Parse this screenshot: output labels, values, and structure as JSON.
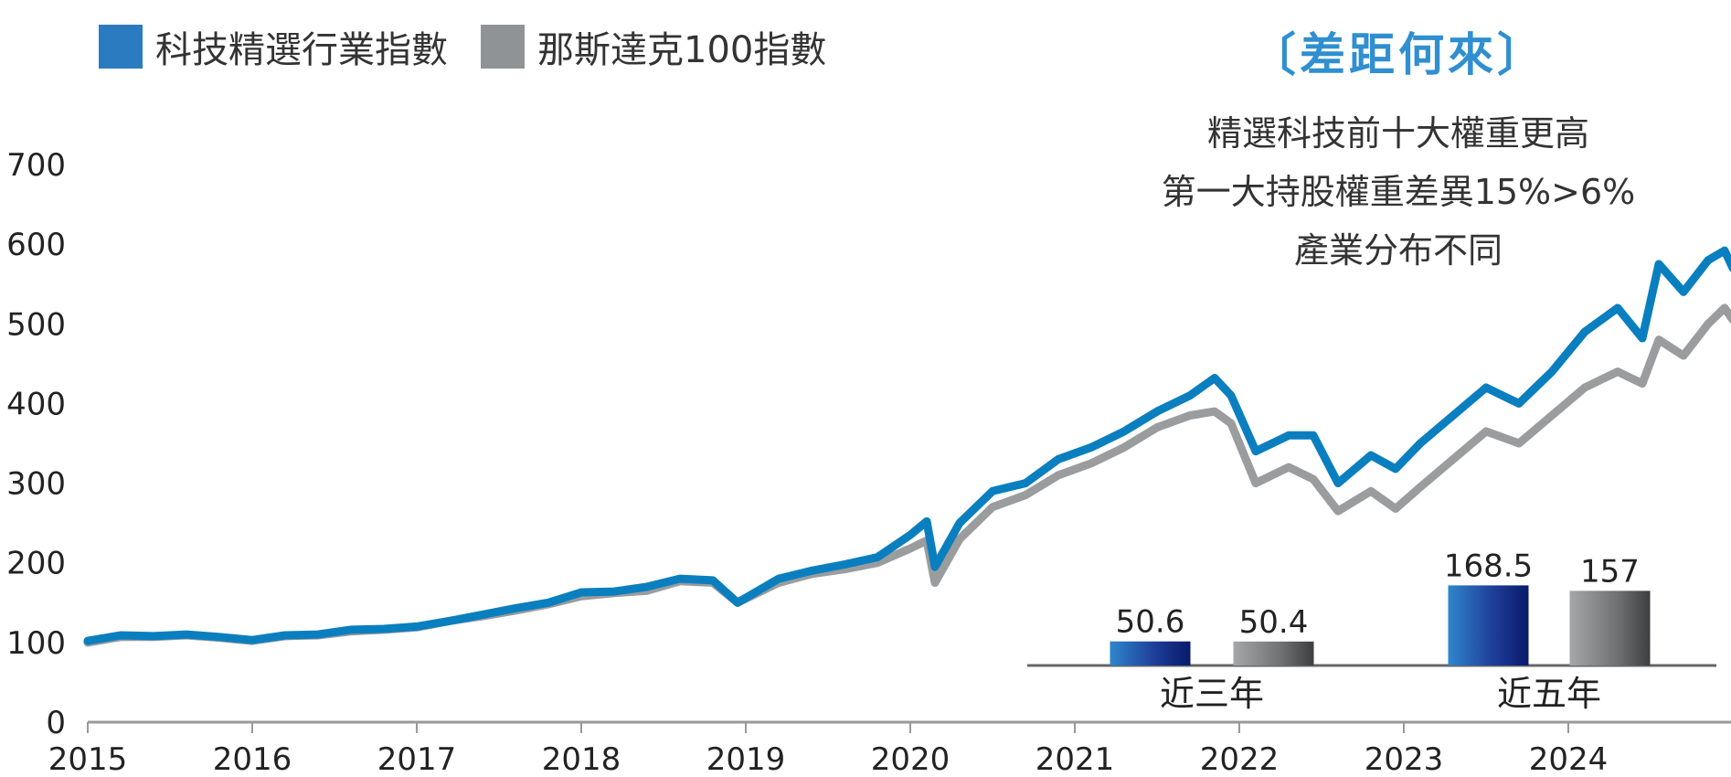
{
  "legend": {
    "items": [
      {
        "label": "科技精選行業指數",
        "color": "#2b7bc0"
      },
      {
        "label": "那斯達克100指數",
        "color": "#8f9396"
      }
    ]
  },
  "callout": {
    "title": "〔差距何來〕",
    "lines": [
      "精選科技前十大權重更高",
      "第一大持股權重差異15%>6%",
      "產業分布不同"
    ]
  },
  "chart_data": [
    {
      "type": "line",
      "title": "",
      "xlabel": "",
      "ylabel": "",
      "ylim": [
        0,
        700
      ],
      "yticks": [
        "0",
        "100",
        "200",
        "300",
        "400",
        "500",
        "600",
        "700"
      ],
      "xlim": [
        2015,
        2025.0
      ],
      "xticks": [
        "2015",
        "2016",
        "2017",
        "2018",
        "2019",
        "2020",
        "2021",
        "2022",
        "2023",
        "2024"
      ],
      "grid": false,
      "legend_position": "top-left",
      "series": [
        {
          "name": "科技精選行業指數",
          "color": "#0a7fbf",
          "x": [
            2015.0,
            2015.2,
            2015.4,
            2015.6,
            2015.8,
            2016.0,
            2016.2,
            2016.4,
            2016.6,
            2016.8,
            2017.0,
            2017.2,
            2017.4,
            2017.6,
            2017.8,
            2018.0,
            2018.2,
            2018.4,
            2018.6,
            2018.8,
            2018.95,
            2019.2,
            2019.4,
            2019.6,
            2019.8,
            2020.0,
            2020.1,
            2020.15,
            2020.3,
            2020.5,
            2020.7,
            2020.9,
            2021.1,
            2021.3,
            2021.5,
            2021.7,
            2021.85,
            2021.95,
            2022.1,
            2022.3,
            2022.45,
            2022.6,
            2022.8,
            2022.95,
            2023.1,
            2023.3,
            2023.5,
            2023.7,
            2023.9,
            2024.1,
            2024.3,
            2024.45,
            2024.55,
            2024.7,
            2024.85,
            2024.95,
            2025.0
          ],
          "values": [
            102,
            109,
            108,
            110,
            107,
            103,
            109,
            110,
            116,
            117,
            120,
            127,
            135,
            143,
            150,
            163,
            164,
            170,
            180,
            178,
            150,
            180,
            190,
            198,
            207,
            235,
            252,
            195,
            250,
            290,
            300,
            330,
            345,
            365,
            390,
            410,
            432,
            410,
            340,
            360,
            360,
            300,
            335,
            318,
            350,
            385,
            420,
            400,
            440,
            490,
            520,
            482,
            575,
            540,
            580,
            592,
            570
          ]
        },
        {
          "name": "那斯達克100指數",
          "color": "#9a9c9e",
          "x": [
            2015.0,
            2015.2,
            2015.4,
            2015.6,
            2015.8,
            2016.0,
            2016.2,
            2016.4,
            2016.6,
            2016.8,
            2017.0,
            2017.2,
            2017.4,
            2017.6,
            2017.8,
            2018.0,
            2018.2,
            2018.4,
            2018.6,
            2018.8,
            2018.95,
            2019.2,
            2019.4,
            2019.6,
            2019.8,
            2020.0,
            2020.1,
            2020.15,
            2020.3,
            2020.5,
            2020.7,
            2020.9,
            2021.1,
            2021.3,
            2021.5,
            2021.7,
            2021.85,
            2021.95,
            2022.1,
            2022.3,
            2022.45,
            2022.6,
            2022.8,
            2022.95,
            2023.1,
            2023.3,
            2023.5,
            2023.7,
            2023.9,
            2024.1,
            2024.3,
            2024.45,
            2024.55,
            2024.7,
            2024.85,
            2024.95,
            2025.0
          ],
          "values": [
            100,
            107,
            107,
            109,
            106,
            102,
            108,
            109,
            114,
            116,
            119,
            127,
            133,
            140,
            148,
            158,
            162,
            165,
            177,
            175,
            150,
            175,
            186,
            192,
            200,
            218,
            228,
            175,
            230,
            270,
            285,
            310,
            325,
            345,
            370,
            385,
            390,
            375,
            300,
            320,
            305,
            265,
            290,
            268,
            295,
            330,
            365,
            350,
            385,
            420,
            440,
            425,
            480,
            460,
            500,
            520,
            505
          ]
        }
      ]
    },
    {
      "type": "bar",
      "title": "",
      "categories": [
        "近三年",
        "近五年"
      ],
      "series": [
        {
          "name": "科技精選行業指數",
          "color": "#2b7bc0",
          "values": [
            50.6,
            168.5
          ],
          "labels": [
            "50.6",
            "168.5"
          ]
        },
        {
          "name": "那斯達克100指數",
          "color": "#8f9396",
          "values": [
            50.4,
            157
          ],
          "labels": [
            "50.4",
            "157"
          ]
        }
      ]
    }
  ]
}
